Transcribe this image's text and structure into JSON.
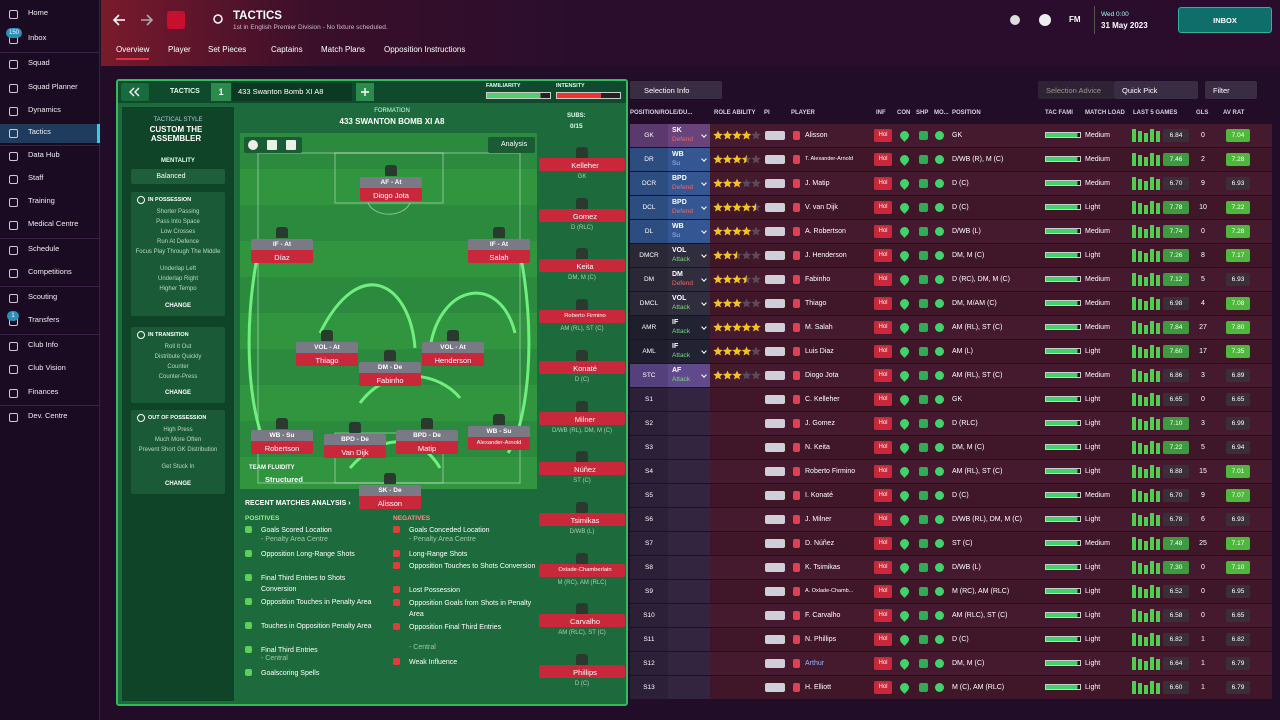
{
  "sidebar": {
    "items": [
      "Home",
      "Inbox",
      "Squad",
      "Squad Planner",
      "Dynamics",
      "Tactics",
      "Data Hub",
      "Staff",
      "Training",
      "Medical Centre",
      "Schedule",
      "Competitions",
      "Scouting",
      "Transfers",
      "Club Info",
      "Club Vision",
      "Finances",
      "Dev. Centre"
    ],
    "inbox_badge": "150",
    "transfers_badge": "1"
  },
  "header": {
    "title": "TACTICS",
    "subtitle": "1st in English Premier Division - No fixture scheduled.",
    "fm": "FM",
    "day_time": "Wed 0:00",
    "date": "31 May 2023",
    "inbox": "INBOX"
  },
  "tabs": [
    "Overview",
    "Player",
    "Set Pieces",
    "Captains",
    "Match Plans",
    "Opposition Instructions"
  ],
  "tactics": {
    "label": "TACTICS",
    "slot": "1",
    "name": "433 Swanton Bomb XI A8",
    "familiarity": "FAMILIARITY",
    "intensity": "INTENSITY",
    "style_label": "TACTICAL STYLE",
    "style": "CUSTOM THE ASSEMBLER",
    "mentality_label": "MENTALITY",
    "mentality": "Balanced",
    "change": "CHANGE",
    "sections": [
      {
        "title": "IN POSSESSION",
        "items": [
          "Shorter Passing",
          "Pass Into Space",
          "Low Crosses",
          "Run At Defence",
          "Focus Play Through The Middle",
          "Underlap Left",
          "Underlap Right",
          "Higher Tempo"
        ]
      },
      {
        "title": "IN TRANSITION",
        "items": [
          "Roll It Out",
          "Distribute Quickly",
          "Counter",
          "Counter-Press"
        ]
      },
      {
        "title": "OUT OF POSSESSION",
        "items": [
          "High Press",
          "Much More Often",
          "Prevent Short GK Distribution",
          "Get Stuck In"
        ]
      }
    ],
    "formation_label": "FORMATION",
    "formation": "433 SWANTON BOMB XI A8",
    "subs_label": "SUBS:",
    "subs_count": "0/15",
    "analysis": "Analysis",
    "fluidity_label": "TEAM FLUIDITY",
    "fluidity": "Structured"
  },
  "pitch_players": [
    {
      "role": "AF - At",
      "name": "Diogo Jota"
    },
    {
      "role": "IF - At",
      "name": "Díaz"
    },
    {
      "role": "IF - At",
      "name": "Salah"
    },
    {
      "role": "VOL - At",
      "name": "Thiago"
    },
    {
      "role": "DM - De",
      "name": "Fabinho"
    },
    {
      "role": "VOL - At",
      "name": "Henderson"
    },
    {
      "role": "WB - Su",
      "name": "Robertson"
    },
    {
      "role": "BPD - De",
      "name": "Van Dijk"
    },
    {
      "role": "BPD - De",
      "name": "Matip"
    },
    {
      "role": "WB - Su",
      "name": "Alexander-Arnold"
    },
    {
      "role": "SK - De",
      "name": "Alisson"
    }
  ],
  "subs": [
    {
      "name": "Kelleher",
      "pos": "GK"
    },
    {
      "name": "Gomez",
      "pos": "D (RLC)"
    },
    {
      "name": "Keita",
      "pos": "DM, M (C)"
    },
    {
      "name": "Roberto Firmino",
      "pos": "AM (RL), ST (C)"
    },
    {
      "name": "Konaté",
      "pos": "D (C)"
    },
    {
      "name": "Milner",
      "pos": "D/WB (RL), DM, M (C)"
    },
    {
      "name": "Núñez",
      "pos": "ST (C)"
    },
    {
      "name": "Tsimikas",
      "pos": "D/WB (L)"
    },
    {
      "name": "Oxlade-Chamberlain",
      "pos": "M (RC), AM (RLC)"
    },
    {
      "name": "Carvalho",
      "pos": "AM (RLC), ST (C)"
    },
    {
      "name": "Phillips",
      "pos": "D (C)"
    }
  ],
  "analysis": {
    "title": "RECENT MATCHES ANALYSIS ›",
    "positives_label": "POSITIVES",
    "negatives_label": "NEGATIVES",
    "positives": [
      {
        "text": "Goals Scored Location",
        "sub": "- Penalty Area Centre"
      },
      {
        "text": "Opposition Long-Range Shots"
      },
      {
        "text": "Final Third Entries to Shots Conversion"
      },
      {
        "text": "Opposition Touches in Penalty Area"
      },
      {
        "text": "Touches in Opposition Penalty Area"
      },
      {
        "text": "Final Third Entries",
        "sub": "- Central"
      },
      {
        "text": "Goalscoring Spells"
      }
    ],
    "negatives": [
      {
        "text": "Goals Conceded Location",
        "sub": "- Penalty Area Centre"
      },
      {
        "text": "Long-Range Shots"
      },
      {
        "text": "Opposition Touches to Shots Conversion"
      },
      {
        "text": "Lost Possession"
      },
      {
        "text": "Opposition Goals from Shots in Penalty Area"
      },
      {
        "text": "Opposition Final Third Entries",
        "sub": "- Central"
      },
      {
        "text": "Weak Influence"
      }
    ]
  },
  "table": {
    "toolbar": [
      "Selection Info",
      "Selection Advice",
      "Quick Pick",
      "Filter"
    ],
    "columns": [
      "POSITION/ROLE/DU...",
      "ROLE ABILITY",
      "PI",
      "PLAYER",
      "INF",
      "CON",
      "SHP",
      "MO...",
      "POSITION",
      "TAC FAMI",
      "MATCH LOAD",
      "LAST 5 GAMES",
      "GLS",
      "AV RAT"
    ],
    "inf_label": "Hol",
    "rows": [
      {
        "pos": "GK",
        "role": "SK",
        "duty": "Defend",
        "ability_stars": 4,
        "player": "Alisson",
        "position": "GK",
        "load": "Medium",
        "ability": "6.84",
        "gls": 0,
        "av_rat": "7.04"
      },
      {
        "pos": "DR",
        "role": "WB",
        "duty": "Su",
        "ability_stars": 3.5,
        "player": "T. Alexander-Arnold",
        "position": "D/WB (R), M (C)",
        "load": "Medium",
        "ability": "7.46",
        "gls": 2,
        "av_rat": "7.28"
      },
      {
        "pos": "DCR",
        "role": "BPD",
        "duty": "Defend",
        "ability_stars": 3,
        "player": "J. Matip",
        "position": "D (C)",
        "load": "Medium",
        "ability": "6.70",
        "gls": 9,
        "av_rat": "6.93"
      },
      {
        "pos": "DCL",
        "role": "BPD",
        "duty": "Defend",
        "ability_stars": 4.5,
        "player": "V. van Dijk",
        "position": "D (C)",
        "load": "Light",
        "ability": "7.78",
        "gls": 10,
        "av_rat": "7.22"
      },
      {
        "pos": "DL",
        "role": "WB",
        "duty": "Su",
        "ability_stars": 4,
        "player": "A. Robertson",
        "position": "D/WB (L)",
        "load": "Medium",
        "ability": "7.74",
        "gls": 0,
        "av_rat": "7.28"
      },
      {
        "pos": "DMCR",
        "role": "VOL",
        "duty": "Attack",
        "ability_stars": 2.5,
        "player": "J. Henderson",
        "position": "DM, M (C)",
        "load": "Light",
        "ability": "7.26",
        "gls": 8,
        "av_rat": "7.17"
      },
      {
        "pos": "DM",
        "role": "DM",
        "duty": "Defend",
        "ability_stars": 3.5,
        "player": "Fabinho",
        "position": "D (RC), DM, M (C)",
        "load": "Medium",
        "ability": "7.12",
        "gls": 5,
        "av_rat": "6.93"
      },
      {
        "pos": "DMCL",
        "role": "VOL",
        "duty": "Attack",
        "ability_stars": 3,
        "player": "Thiago",
        "position": "DM, M/AM (C)",
        "load": "Medium",
        "ability": "6.98",
        "gls": 4,
        "av_rat": "7.08"
      },
      {
        "pos": "AMR",
        "role": "IF",
        "duty": "Attack",
        "ability_stars": 5,
        "player": "M. Salah",
        "position": "AM (RL), ST (C)",
        "load": "Medium",
        "ability": "7.84",
        "gls": 27,
        "av_rat": "7.80"
      },
      {
        "pos": "AML",
        "role": "IF",
        "duty": "Attack",
        "ability_stars": 4,
        "player": "Luis Diaz",
        "position": "AM (L)",
        "load": "Light",
        "ability": "7.60",
        "gls": 17,
        "av_rat": "7.35"
      },
      {
        "pos": "STC",
        "role": "AF",
        "duty": "Attack",
        "ability_stars": 3,
        "player": "Diogo Jota",
        "position": "AM (RL), ST (C)",
        "load": "Medium",
        "ability": "6.86",
        "gls": 3,
        "av_rat": "6.89"
      },
      {
        "pos": "S1",
        "player": "C. Kelleher",
        "position": "GK",
        "load": "Light",
        "ability": "6.65",
        "gls": 0,
        "av_rat": "6.65"
      },
      {
        "pos": "S2",
        "player": "J. Gomez",
        "position": "D (RLC)",
        "load": "Light",
        "ability": "7.10",
        "gls": 3,
        "av_rat": "6.99"
      },
      {
        "pos": "S3",
        "player": "N. Keita",
        "position": "DM, M (C)",
        "load": "Light",
        "ability": "7.22",
        "gls": 5,
        "av_rat": "6.94"
      },
      {
        "pos": "S4",
        "player": "Roberto Firmino",
        "position": "AM (RL), ST (C)",
        "load": "Light",
        "ability": "6.88",
        "gls": 15,
        "av_rat": "7.01"
      },
      {
        "pos": "S5",
        "player": "I. Konaté",
        "position": "D (C)",
        "load": "Medium",
        "ability": "6.70",
        "gls": 9,
        "av_rat": "7.07"
      },
      {
        "pos": "S6",
        "player": "J. Milner",
        "position": "D/WB (RL), DM, M (C)",
        "load": "Light",
        "ability": "6.78",
        "gls": 6,
        "av_rat": "6.93"
      },
      {
        "pos": "S7",
        "player": "D. Núñez",
        "position": "ST (C)",
        "load": "Medium",
        "ability": "7.48",
        "gls": 25,
        "av_rat": "7.17"
      },
      {
        "pos": "S8",
        "player": "K. Tsimikas",
        "position": "D/WB (L)",
        "load": "Light",
        "ability": "7.30",
        "gls": 0,
        "av_rat": "7.10"
      },
      {
        "pos": "S9",
        "player": "A. Oxlade-Chamb...",
        "position": "M (RC), AM (RLC)",
        "load": "Light",
        "ability": "6.52",
        "gls": 0,
        "av_rat": "6.95"
      },
      {
        "pos": "S10",
        "player": "F. Carvalho",
        "position": "AM (RLC), ST (C)",
        "load": "Light",
        "ability": "6.58",
        "gls": 0,
        "av_rat": "6.65"
      },
      {
        "pos": "S11",
        "player": "N. Phillips",
        "position": "D (C)",
        "load": "Light",
        "ability": "6.82",
        "gls": 1,
        "av_rat": "6.82"
      },
      {
        "pos": "S12",
        "player": "Arthur",
        "position": "DM, M (C)",
        "load": "Light",
        "ability": "6.64",
        "gls": 1,
        "av_rat": "6.79"
      },
      {
        "pos": "S13",
        "player": "H. Elliott",
        "position": "M (C), AM (RLC)",
        "load": "Light",
        "ability": "6.60",
        "gls": 1,
        "av_rat": "6.79"
      }
    ]
  }
}
